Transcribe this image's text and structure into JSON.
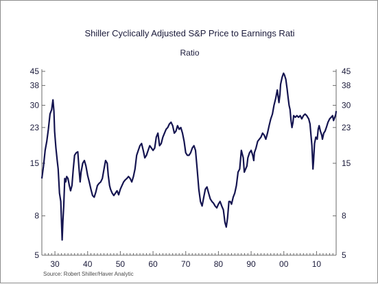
{
  "chart_data": {
    "type": "line",
    "title": "Shiller Cyclically Adjusted S&P Price to Earnings Rati",
    "subtitle": "Ratio",
    "source": "Source: Robert Shiller/Haver Analytic",
    "y_scale": "log",
    "ylim": [
      5,
      45
    ],
    "y_ticks": [
      45,
      38,
      30,
      23,
      15,
      8,
      5
    ],
    "y_ticks_right": [
      45,
      38,
      30,
      23,
      15,
      8,
      5
    ],
    "xlim": [
      1926,
      2016
    ],
    "x_ticks": [
      1930,
      1940,
      1950,
      1960,
      1970,
      1980,
      1990,
      2000,
      2010
    ],
    "x_tick_labels": [
      "30",
      "40",
      "50",
      "60",
      "70",
      "80",
      "90",
      "00",
      "10"
    ],
    "grid": false,
    "legend": "none",
    "line_color": "#141450",
    "series": [
      {
        "x": [
          1926.0,
          1926.5,
          1927.0,
          1927.5,
          1928.0,
          1928.5,
          1929.0,
          1929.4,
          1929.7,
          1929.9,
          1930.3,
          1930.7,
          1931.0,
          1931.4,
          1931.8,
          1932.2,
          1932.45,
          1932.7,
          1933.0,
          1933.3,
          1933.6,
          1934.0,
          1934.4,
          1934.8,
          1935.2,
          1935.6,
          1936.0,
          1936.5,
          1937.0,
          1937.3,
          1937.7,
          1938.0,
          1938.5,
          1939.0,
          1939.5,
          1940.0,
          1940.5,
          1941.0,
          1941.5,
          1942.0,
          1942.5,
          1943.0,
          1943.5,
          1944.0,
          1944.5,
          1945.0,
          1945.5,
          1946.0,
          1946.3,
          1946.7,
          1947.0,
          1947.5,
          1948.0,
          1948.5,
          1949.0,
          1949.5,
          1950.0,
          1950.5,
          1951.0,
          1951.5,
          1952.0,
          1952.5,
          1953.0,
          1953.5,
          1954.0,
          1954.5,
          1955.0,
          1955.5,
          1956.0,
          1956.5,
          1957.0,
          1957.5,
          1958.0,
          1958.5,
          1959.0,
          1959.5,
          1960.0,
          1960.5,
          1961.0,
          1961.5,
          1962.0,
          1962.5,
          1963.0,
          1963.5,
          1964.0,
          1964.5,
          1965.0,
          1965.5,
          1966.0,
          1966.5,
          1967.0,
          1967.5,
          1968.0,
          1968.5,
          1969.0,
          1969.5,
          1970.0,
          1970.5,
          1971.0,
          1971.5,
          1972.0,
          1972.5,
          1973.0,
          1973.5,
          1974.0,
          1974.5,
          1975.0,
          1975.5,
          1976.0,
          1976.5,
          1977.0,
          1977.5,
          1978.0,
          1978.5,
          1979.0,
          1979.5,
          1980.0,
          1980.5,
          1981.0,
          1981.5,
          1982.0,
          1982.4,
          1982.8,
          1983.2,
          1983.6,
          1984.0,
          1984.5,
          1985.0,
          1985.5,
          1986.0,
          1986.5,
          1987.0,
          1987.6,
          1987.9,
          1988.3,
          1988.7,
          1989.0,
          1989.5,
          1990.0,
          1990.5,
          1990.8,
          1991.0,
          1991.5,
          1992.0,
          1992.5,
          1993.0,
          1993.5,
          1994.0,
          1994.5,
          1995.0,
          1995.5,
          1996.0,
          1996.5,
          1997.0,
          1997.5,
          1998.0,
          1998.5,
          1998.8,
          1999.0,
          1999.5,
          1999.9,
          2000.2,
          2000.6,
          2001.0,
          2001.3,
          2001.6,
          2001.9,
          2002.2,
          2002.5,
          2002.8,
          2003.0,
          2003.5,
          2004.0,
          2004.5,
          2005.0,
          2005.5,
          2006.0,
          2006.5,
          2007.0,
          2007.3,
          2007.6,
          2008.0,
          2008.3,
          2008.6,
          2008.9,
          2009.1,
          2009.4,
          2009.8,
          2010.2,
          2010.5,
          2010.8,
          2011.2,
          2011.6,
          2011.8,
          2012.2,
          2012.6,
          2013.0,
          2013.5,
          2014.0,
          2014.5,
          2014.9,
          2015.2,
          2015.6,
          2015.9,
          2016.0
        ],
        "values": [
          12.5,
          14.5,
          17.5,
          19.5,
          22.5,
          27.0,
          28.5,
          32.0,
          28.0,
          22.0,
          18.0,
          15.5,
          14.0,
          10.5,
          9.5,
          6.0,
          7.5,
          9.0,
          12.5,
          12.0,
          12.8,
          12.5,
          11.5,
          10.8,
          11.5,
          14.0,
          16.5,
          17.0,
          17.2,
          14.5,
          12.0,
          13.5,
          15.0,
          15.5,
          14.5,
          13.0,
          12.0,
          11.0,
          10.2,
          10.0,
          10.6,
          11.5,
          11.8,
          12.0,
          12.5,
          14.0,
          15.5,
          15.0,
          13.0,
          11.5,
          11.0,
          10.5,
          10.2,
          10.5,
          10.8,
          10.3,
          11.0,
          11.5,
          12.0,
          12.3,
          12.5,
          12.8,
          12.5,
          12.0,
          12.8,
          14.0,
          16.5,
          17.5,
          18.5,
          19.0,
          17.5,
          16.0,
          16.5,
          17.5,
          18.5,
          18.0,
          17.5,
          18.0,
          20.5,
          21.5,
          18.5,
          19.0,
          20.5,
          21.5,
          22.5,
          23.0,
          24.0,
          24.5,
          23.5,
          21.5,
          22.0,
          23.5,
          22.5,
          23.0,
          21.5,
          19.5,
          17.0,
          16.5,
          16.5,
          17.0,
          18.0,
          18.5,
          17.5,
          14.0,
          11.0,
          9.5,
          9.0,
          10.0,
          11.0,
          11.3,
          10.5,
          9.8,
          9.5,
          9.3,
          9.0,
          8.8,
          9.2,
          9.5,
          9.0,
          8.6,
          7.4,
          7.0,
          7.8,
          9.5,
          9.5,
          9.2,
          10.0,
          10.5,
          11.5,
          13.5,
          14.0,
          17.5,
          16.0,
          13.5,
          14.0,
          14.5,
          16.0,
          17.0,
          17.5,
          16.5,
          15.5,
          17.0,
          18.0,
          19.5,
          20.0,
          20.5,
          21.5,
          21.0,
          20.0,
          21.5,
          23.5,
          25.5,
          27.0,
          30.0,
          32.5,
          36.0,
          31.0,
          34.0,
          38.5,
          42.0,
          44.0,
          43.0,
          41.0,
          36.5,
          33.0,
          30.0,
          28.5,
          25.0,
          23.0,
          24.5,
          26.5,
          26.0,
          26.5,
          26.0,
          26.5,
          25.5,
          26.5,
          27.0,
          26.5,
          26.0,
          25.5,
          24.0,
          21.0,
          18.5,
          14.0,
          15.5,
          19.0,
          20.5,
          20.0,
          22.5,
          23.5,
          22.0,
          21.0,
          20.0,
          21.5,
          22.0,
          23.0,
          24.5,
          25.5,
          26.0,
          26.5,
          25.0,
          26.0,
          27.0,
          28.0
        ]
      }
    ]
  }
}
